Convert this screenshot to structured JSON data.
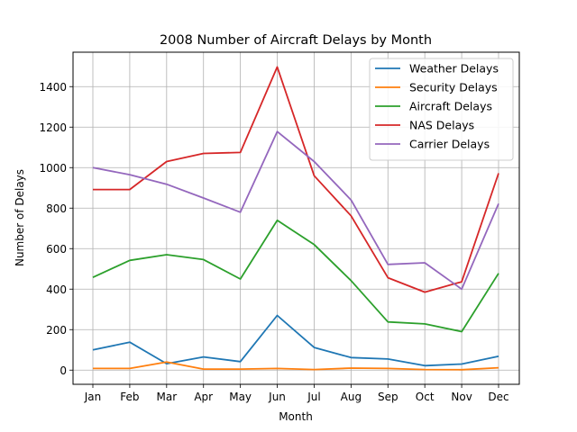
{
  "chart_data": {
    "type": "line",
    "title": "2008 Number of Aircraft Delays by Month",
    "xlabel": "Month",
    "ylabel": "Number of Delays",
    "categories": [
      "Jan",
      "Feb",
      "Mar",
      "Apr",
      "May",
      "Jun",
      "Jul",
      "Aug",
      "Sep",
      "Oct",
      "Nov",
      "Dec"
    ],
    "ylim": [
      -70,
      1570
    ],
    "yticks": [
      0,
      200,
      400,
      600,
      800,
      1000,
      1200,
      1400
    ],
    "grid": true,
    "legend_position": "top-right",
    "series": [
      {
        "name": "Weather Delays",
        "color": "#1f77b4",
        "values": [
          100,
          138,
          32,
          65,
          42,
          270,
          112,
          62,
          55,
          22,
          30,
          68
        ]
      },
      {
        "name": "Security Delays",
        "color": "#ff7f0e",
        "values": [
          8,
          8,
          40,
          5,
          5,
          8,
          3,
          10,
          8,
          3,
          2,
          12
        ]
      },
      {
        "name": "Aircraft Delays",
        "color": "#2ca02c",
        "values": [
          458,
          542,
          570,
          546,
          450,
          740,
          620,
          442,
          238,
          228,
          190,
          478
        ]
      },
      {
        "name": "NAS Delays",
        "color": "#d62728",
        "values": [
          892,
          892,
          1030,
          1070,
          1075,
          1497,
          960,
          762,
          456,
          385,
          436,
          972
        ]
      },
      {
        "name": "Carrier Delays",
        "color": "#9467bd",
        "values": [
          1000,
          965,
          918,
          850,
          780,
          1178,
          1030,
          840,
          522,
          530,
          400,
          822
        ]
      }
    ]
  }
}
